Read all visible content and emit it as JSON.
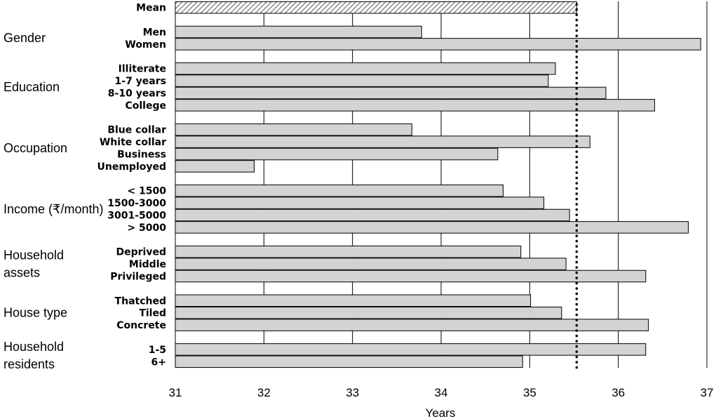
{
  "chart_data": {
    "type": "bar",
    "orientation": "horizontal",
    "xlabel": "Years",
    "xlim": [
      31,
      37
    ],
    "xticks": [
      31,
      32,
      33,
      34,
      35,
      36,
      37
    ],
    "grid": true,
    "reference_line": {
      "value": 35.53,
      "style": "dotted"
    },
    "colors": {
      "bar": "#d3d3d3",
      "mean_hatch": "#7a7a7a",
      "outline": "#000000"
    },
    "groups": [
      {
        "name": "",
        "items": [
          {
            "label": "Mean",
            "value": 35.53,
            "hatched": true
          }
        ]
      },
      {
        "name": "Gender",
        "items": [
          {
            "label": "Men",
            "value": 33.78
          },
          {
            "label": "Women",
            "value": 36.93
          }
        ]
      },
      {
        "name": "Education",
        "items": [
          {
            "label": "Illiterate",
            "value": 35.29
          },
          {
            "label": "1-7 years",
            "value": 35.21
          },
          {
            "label": "8-10 years",
            "value": 35.86
          },
          {
            "label": "College",
            "value": 36.41
          }
        ]
      },
      {
        "name": "Occupation",
        "items": [
          {
            "label": "Blue collar",
            "value": 33.67
          },
          {
            "label": "White collar",
            "value": 35.68
          },
          {
            "label": "Business",
            "value": 34.64
          },
          {
            "label": "Unemployed",
            "value": 31.89
          }
        ]
      },
      {
        "name": "Income (₹/month)",
        "items": [
          {
            "label": "< 1500",
            "value": 34.7
          },
          {
            "label": "1500-3000",
            "value": 35.16
          },
          {
            "label": "3001-5000",
            "value": 35.45
          },
          {
            "label": "> 5000",
            "value": 36.79
          }
        ]
      },
      {
        "name": "Household\nassets",
        "items": [
          {
            "label": "Deprived",
            "value": 34.9
          },
          {
            "label": "Middle",
            "value": 35.41
          },
          {
            "label": "Privileged",
            "value": 36.31
          }
        ]
      },
      {
        "name": "House type",
        "items": [
          {
            "label": "Thatched",
            "value": 35.01
          },
          {
            "label": "Tiled",
            "value": 35.36
          },
          {
            "label": "Concrete",
            "value": 36.34
          }
        ]
      },
      {
        "name": "Household\nresidents",
        "items": [
          {
            "label": "1-5",
            "value": 36.31
          },
          {
            "label": "6+",
            "value": 34.92
          }
        ]
      }
    ]
  }
}
